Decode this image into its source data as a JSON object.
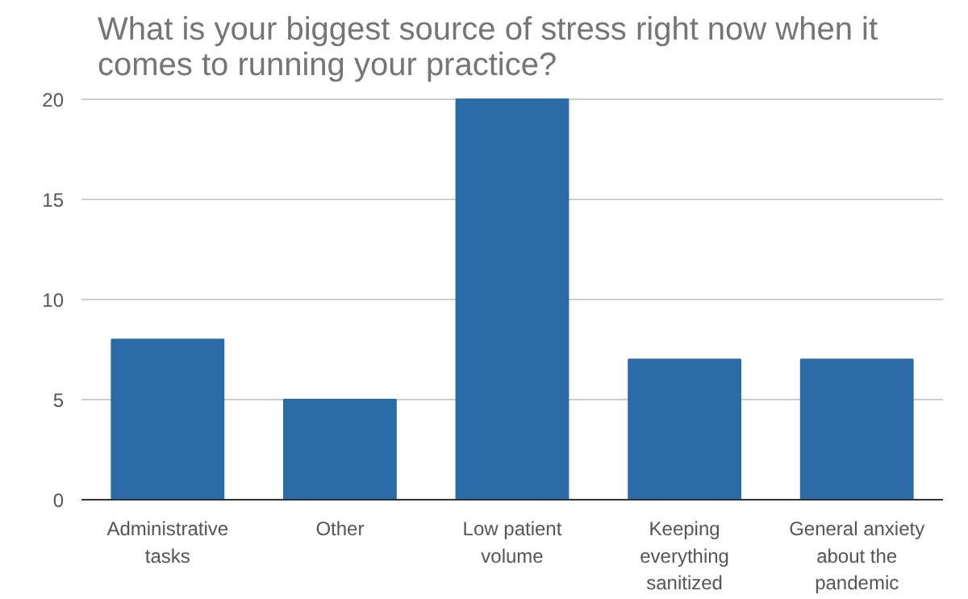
{
  "chart_data": {
    "type": "bar",
    "title": "What is your biggest source of stress right now when it comes to running your practice?",
    "categories": [
      "Administrative tasks",
      "Other",
      "Low patient volume",
      "Keeping everything sanitized",
      "General anxiety about the pandemic"
    ],
    "values": [
      8,
      5,
      20,
      7,
      7
    ],
    "color": "#2a6ca6",
    "ylim": [
      0,
      20
    ],
    "yticks": [
      0,
      5,
      10,
      15,
      20
    ],
    "grid": "y"
  }
}
